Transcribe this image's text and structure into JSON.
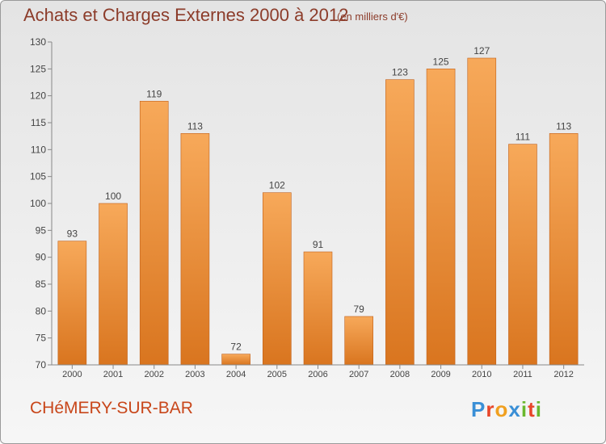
{
  "header": {
    "title": "Achats et Charges Externes 2000 à 2012",
    "unit": "(en milliers d'€)"
  },
  "footer": {
    "town": "CHéMERY-SUR-BAR",
    "logo_letters": [
      "P",
      "r",
      "o",
      "x",
      "i",
      "t",
      "i"
    ],
    "logo_colors": [
      "#3a8fd6",
      "#e8462a",
      "#f0a020",
      "#3a8fd6",
      "#6ab82e",
      "#e8462a",
      "#6ab82e"
    ]
  },
  "colors": {
    "bar_top": "#f7a95a",
    "bar_bottom": "#d9751f",
    "bar_edge": "#c0601a",
    "text": "#444444",
    "axis": "#888888"
  },
  "chart_data": {
    "type": "bar",
    "categories": [
      "2000",
      "2001",
      "2002",
      "2003",
      "2004",
      "2005",
      "2006",
      "2007",
      "2008",
      "2009",
      "2010",
      "2011",
      "2012"
    ],
    "values": [
      93,
      100,
      119,
      113,
      72,
      102,
      91,
      79,
      123,
      125,
      127,
      111,
      113
    ],
    "title": "Achats et Charges Externes 2000 à 2012",
    "ylim": [
      70,
      130
    ],
    "yticks": [
      70,
      75,
      80,
      85,
      90,
      95,
      100,
      105,
      110,
      115,
      120,
      125,
      130
    ],
    "grid": false,
    "legend": "none"
  }
}
